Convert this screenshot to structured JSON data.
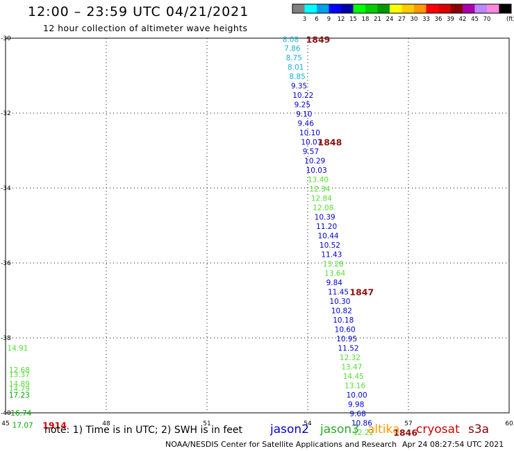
{
  "header": {
    "title": "12:00 – 23:59 UTC 04/21/2021",
    "subtitle": "12 hour collection of altimeter wave heights"
  },
  "legend": {
    "unit": "(ft)",
    "labels": [
      "3",
      "6",
      "9",
      "12",
      "15",
      "18",
      "21",
      "24",
      "27",
      "30",
      "33",
      "36",
      "39",
      "42",
      "45",
      "70"
    ],
    "colors": [
      "#808080",
      "#00ffff",
      "#00a0e6",
      "#0000ff",
      "#0000aa",
      "#00ff00",
      "#00cc00",
      "#009900",
      "#ffff00",
      "#ffcc00",
      "#ff9900",
      "#ff0000",
      "#dd0000",
      "#880000",
      "#aa00aa",
      "#bb88ff",
      "#ff88dd",
      "#000000"
    ]
  },
  "footer": {
    "note": "note: 1) Time is in UTC; 2) SWH is in feet",
    "credit": "NOAA/NESDIS Center for Satellite Applications and Research",
    "timestamp": "Apr 24 08:27:54 UTC 2021"
  },
  "satellites": [
    {
      "name": "jason2",
      "color": "#0000cc"
    },
    {
      "name": "jason3",
      "color": "#22aa22"
    },
    {
      "name": "altika",
      "color": "#ff9900"
    },
    {
      "name": "cryosat",
      "color": "#cc0000"
    },
    {
      "name": "s3a",
      "color": "#880000"
    }
  ],
  "chart_data": {
    "type": "scatter",
    "title": "12:00 – 23:59 UTC 04/21/2021",
    "xlim": [
      45,
      60
    ],
    "ylim": [
      -40,
      -30
    ],
    "x_ticks": [
      45,
      48,
      51,
      54,
      57,
      60
    ],
    "x_tick_labels": [
      "45",
      "48",
      "51",
      "54",
      "57",
      "60"
    ],
    "y_ticks": [
      -30,
      -32,
      -34,
      -36,
      -38,
      -40
    ],
    "y_tick_labels": [
      "-30",
      "-32",
      "-34",
      "-36",
      "-38",
      "-40"
    ],
    "grid": true,
    "points": [
      {
        "lon": 53.25,
        "lat": -30.03,
        "label": "8.08",
        "color": "#1aaed8"
      },
      {
        "lon": 53.3,
        "lat": -30.27,
        "label": "7.86",
        "color": "#1aaed8"
      },
      {
        "lon": 53.35,
        "lat": -30.52,
        "label": "8.75",
        "color": "#1aaed8"
      },
      {
        "lon": 53.4,
        "lat": -30.77,
        "label": "8.01",
        "color": "#1aaed8"
      },
      {
        "lon": 53.45,
        "lat": -31.02,
        "label": "8.85",
        "color": "#1aaed8"
      },
      {
        "lon": 53.5,
        "lat": -31.27,
        "label": "9.35",
        "color": "#0000cc"
      },
      {
        "lon": 53.55,
        "lat": -31.52,
        "label": "10.22",
        "color": "#0000cc"
      },
      {
        "lon": 53.6,
        "lat": -31.77,
        "label": "9.25",
        "color": "#0000cc"
      },
      {
        "lon": 53.65,
        "lat": -32.02,
        "label": "9.10",
        "color": "#0000cc"
      },
      {
        "lon": 53.7,
        "lat": -32.27,
        "label": "9.46",
        "color": "#0000cc"
      },
      {
        "lon": 53.75,
        "lat": -32.52,
        "label": "10.10",
        "color": "#0000cc"
      },
      {
        "lon": 53.8,
        "lat": -32.77,
        "label": "10.07",
        "color": "#0000cc"
      },
      {
        "lon": 53.85,
        "lat": -33.02,
        "label": "9.57",
        "color": "#0000cc"
      },
      {
        "lon": 53.9,
        "lat": -33.27,
        "label": "10.29",
        "color": "#0000cc"
      },
      {
        "lon": 53.95,
        "lat": -33.52,
        "label": "10.03",
        "color": "#0000cc"
      },
      {
        "lon": 54.0,
        "lat": -33.77,
        "label": "13.40",
        "color": "#55dd33"
      },
      {
        "lon": 54.05,
        "lat": -34.02,
        "label": "12.34",
        "color": "#55dd33"
      },
      {
        "lon": 54.1,
        "lat": -34.27,
        "label": "12.84",
        "color": "#55dd33"
      },
      {
        "lon": 54.15,
        "lat": -34.52,
        "label": "12.08",
        "color": "#55dd33"
      },
      {
        "lon": 54.2,
        "lat": -34.77,
        "label": "10.39",
        "color": "#0000cc"
      },
      {
        "lon": 54.25,
        "lat": -35.02,
        "label": "11.20",
        "color": "#0000cc"
      },
      {
        "lon": 54.3,
        "lat": -35.27,
        "label": "10.44",
        "color": "#0000cc"
      },
      {
        "lon": 54.35,
        "lat": -35.52,
        "label": "10.52",
        "color": "#0000cc"
      },
      {
        "lon": 54.4,
        "lat": -35.77,
        "label": "11.43",
        "color": "#0000cc"
      },
      {
        "lon": 54.45,
        "lat": -36.02,
        "label": "13.28",
        "color": "#55dd33"
      },
      {
        "lon": 54.5,
        "lat": -36.27,
        "label": "13.64",
        "color": "#55dd33"
      },
      {
        "lon": 54.55,
        "lat": -36.52,
        "label": "9.84",
        "color": "#0000cc"
      },
      {
        "lon": 54.6,
        "lat": -36.77,
        "label": "11.45",
        "color": "#0000cc"
      },
      {
        "lon": 54.65,
        "lat": -37.02,
        "label": "10.30",
        "color": "#0000cc"
      },
      {
        "lon": 54.7,
        "lat": -37.27,
        "label": "10.82",
        "color": "#0000cc"
      },
      {
        "lon": 54.75,
        "lat": -37.52,
        "label": "10.18",
        "color": "#0000cc"
      },
      {
        "lon": 54.8,
        "lat": -37.77,
        "label": "10.60",
        "color": "#0000cc"
      },
      {
        "lon": 54.85,
        "lat": -38.02,
        "label": "10.95",
        "color": "#0000cc"
      },
      {
        "lon": 54.9,
        "lat": -38.27,
        "label": "11.52",
        "color": "#0000cc"
      },
      {
        "lon": 54.95,
        "lat": -38.52,
        "label": "12.32",
        "color": "#55dd33"
      },
      {
        "lon": 55.0,
        "lat": -38.77,
        "label": "13.47",
        "color": "#55dd33"
      },
      {
        "lon": 55.05,
        "lat": -39.02,
        "label": "14.45",
        "color": "#55dd33"
      },
      {
        "lon": 55.1,
        "lat": -39.27,
        "label": "13.16",
        "color": "#55dd33"
      },
      {
        "lon": 55.15,
        "lat": -39.52,
        "label": "10.00",
        "color": "#0000cc"
      },
      {
        "lon": 55.2,
        "lat": -39.77,
        "label": "9.98",
        "color": "#0000cc"
      },
      {
        "lon": 55.25,
        "lat": -40.02,
        "label": "9.68",
        "color": "#0000cc"
      },
      {
        "lon": 55.3,
        "lat": -40.27,
        "label": "10.86",
        "color": "#0000cc"
      },
      {
        "lon": 55.35,
        "lat": -40.52,
        "label": "12.22",
        "color": "#55dd33"
      }
    ],
    "left_points": [
      {
        "lon": 45.05,
        "lat": -38.27,
        "label": "14.91",
        "color": "#55dd33"
      },
      {
        "lon": 45.1,
        "lat": -38.85,
        "label": "12.68",
        "color": "#55dd33"
      },
      {
        "lon": 45.1,
        "lat": -38.97,
        "label": "13.37",
        "color": "#55dd33"
      },
      {
        "lon": 45.1,
        "lat": -39.22,
        "label": "14.89",
        "color": "#55dd33"
      },
      {
        "lon": 45.1,
        "lat": -39.35,
        "label": "14.79",
        "color": "#55dd33"
      },
      {
        "lon": 45.1,
        "lat": -39.52,
        "label": "17.23",
        "color": "#00aa00"
      },
      {
        "lon": 45.15,
        "lat": -40.0,
        "label": "16.74",
        "color": "#00aa00"
      },
      {
        "lon": 45.2,
        "lat": -40.32,
        "label": "17.07",
        "color": "#00aa00"
      }
    ],
    "annotations": [
      {
        "lon": 53.95,
        "lat": -30.03,
        "label": "1849",
        "color": "#8b1010"
      },
      {
        "lon": 54.3,
        "lat": -32.77,
        "label": "1848",
        "color": "#8b1010"
      },
      {
        "lon": 55.25,
        "lat": -36.77,
        "label": "1847",
        "color": "#8b1010"
      },
      {
        "lon": 56.55,
        "lat": -40.52,
        "label": "1846",
        "color": "#8b1010"
      },
      {
        "lon": 46.1,
        "lat": -40.32,
        "label": "1914",
        "color": "#dd0000"
      }
    ]
  }
}
